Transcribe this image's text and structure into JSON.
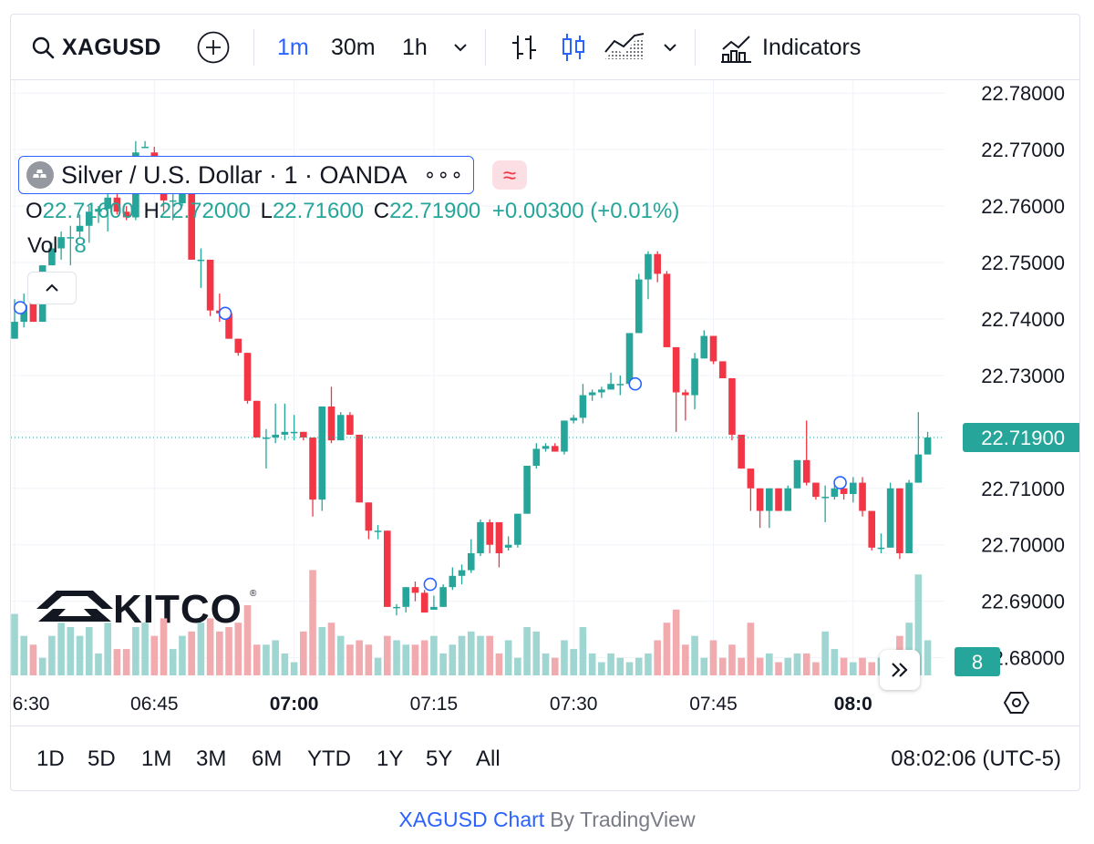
{
  "toolbar": {
    "symbol": "XAGUSD",
    "timeframes": [
      "1m",
      "30m",
      "1h"
    ],
    "active_timeframe": "1m",
    "indicators_label": "Indicators",
    "icons": [
      "search-icon",
      "add-symbol-icon",
      "chevron-down-icon",
      "bar-chart-icon",
      "candles-icon",
      "area-chart-icon",
      "chevron-down-icon",
      "indicators-icon"
    ]
  },
  "legend": {
    "title": "Silver / U.S. Dollar · 1 · OANDA",
    "more": "∘∘∘",
    "approx": "≈",
    "o_label": "O",
    "o": "22.71600",
    "h_label": "H",
    "h": "22.72000",
    "l_label": "L",
    "l": "22.71600",
    "c_label": "C",
    "c": "22.71900",
    "change": "+0.00300 (+0.01%)",
    "vol_label": "Vol",
    "vol": "8"
  },
  "watermark": "KITCO",
  "price_axis_labels": [
    "22.78000",
    "22.77000",
    "22.76000",
    "22.75000",
    "22.74000",
    "22.73000",
    "22.72000",
    "22.71000",
    "22.70000",
    "22.69000",
    "22.68000"
  ],
  "current_price_label": "22.71900",
  "current_volume_label": "8",
  "time_axis_labels": [
    {
      "text": "6:30",
      "bold": false
    },
    {
      "text": "06:45",
      "bold": false
    },
    {
      "text": "07:00",
      "bold": true
    },
    {
      "text": "07:15",
      "bold": false
    },
    {
      "text": "07:30",
      "bold": false
    },
    {
      "text": "07:45",
      "bold": false
    },
    {
      "text": "08:0",
      "bold": true
    }
  ],
  "ranges": [
    "1D",
    "5D",
    "1M",
    "3M",
    "6M",
    "YTD",
    "1Y",
    "5Y",
    "All"
  ],
  "clock": "08:02:06 (UTC-5)",
  "footer": {
    "link": "XAGUSD Chart",
    "by": "By TradingView"
  },
  "colors": {
    "up": "#26a69a",
    "down": "#f23645",
    "accent": "#2962ff",
    "up_volume": "#9fd6d1",
    "down_volume": "#f1aaae"
  },
  "chart_data": {
    "type": "candlestick",
    "interval": "1m",
    "ylim": [
      22.678,
      22.781
    ],
    "last_price": 22.719,
    "x_start": "06:30",
    "candles": [
      {
        "o": 22.7365,
        "h": 22.7435,
        "l": 22.7365,
        "c": 22.7395,
        "v": 14
      },
      {
        "o": 22.7395,
        "h": 22.7445,
        "l": 22.7385,
        "c": 22.7425,
        "v": 9
      },
      {
        "o": 22.7445,
        "h": 22.7445,
        "l": 22.7395,
        "c": 22.7395,
        "v": 7
      },
      {
        "o": 22.7395,
        "h": 22.7495,
        "l": 22.7395,
        "c": 22.7495,
        "v": 4
      },
      {
        "o": 22.7495,
        "h": 22.7535,
        "l": 22.7495,
        "c": 22.7525,
        "v": 9
      },
      {
        "o": 22.7525,
        "h": 22.7555,
        "l": 22.7505,
        "c": 22.7545,
        "v": 12
      },
      {
        "o": 22.7545,
        "h": 22.7565,
        "l": 22.7495,
        "c": 22.7545,
        "v": 11
      },
      {
        "o": 22.7555,
        "h": 22.7585,
        "l": 22.7545,
        "c": 22.7565,
        "v": 9
      },
      {
        "o": 22.7565,
        "h": 22.76,
        "l": 22.7535,
        "c": 22.759,
        "v": 11
      },
      {
        "o": 22.759,
        "h": 22.76,
        "l": 22.757,
        "c": 22.7595,
        "v": 5
      },
      {
        "o": 22.7595,
        "h": 22.7625,
        "l": 22.7555,
        "c": 22.7615,
        "v": 12
      },
      {
        "o": 22.7615,
        "h": 22.7625,
        "l": 22.7585,
        "c": 22.759,
        "v": 6
      },
      {
        "o": 22.759,
        "h": 22.76,
        "l": 22.7575,
        "c": 22.758,
        "v": 6
      },
      {
        "o": 22.758,
        "h": 22.7715,
        "l": 22.7575,
        "c": 22.7695,
        "v": 11
      },
      {
        "o": 22.7705,
        "h": 22.7715,
        "l": 22.7705,
        "c": 22.7705,
        "v": 12
      },
      {
        "o": 22.7695,
        "h": 22.7705,
        "l": 22.763,
        "c": 22.7645,
        "v": 9
      },
      {
        "o": 22.7645,
        "h": 22.766,
        "l": 22.759,
        "c": 22.761,
        "v": 13
      },
      {
        "o": 22.761,
        "h": 22.7625,
        "l": 22.7575,
        "c": 22.761,
        "v": 6
      },
      {
        "o": 22.7605,
        "h": 22.766,
        "l": 22.76,
        "c": 22.7655,
        "v": 9
      },
      {
        "o": 22.7655,
        "h": 22.7655,
        "l": 22.7505,
        "c": 22.7505,
        "v": 10
      },
      {
        "o": 22.7505,
        "h": 22.7525,
        "l": 22.7455,
        "c": 22.7505,
        "v": 12
      },
      {
        "o": 22.7505,
        "h": 22.7505,
        "l": 22.7405,
        "c": 22.7415,
        "v": 13
      },
      {
        "o": 22.7415,
        "h": 22.7445,
        "l": 22.7395,
        "c": 22.741,
        "v": 10
      },
      {
        "o": 22.741,
        "h": 22.741,
        "l": 22.7365,
        "c": 22.7365,
        "v": 11
      },
      {
        "o": 22.7365,
        "h": 22.7365,
        "l": 22.7335,
        "c": 22.734,
        "v": 12
      },
      {
        "o": 22.734,
        "h": 22.734,
        "l": 22.725,
        "c": 22.7255,
        "v": 16
      },
      {
        "o": 22.7255,
        "h": 22.7255,
        "l": 22.719,
        "c": 22.719,
        "v": 7
      },
      {
        "o": 22.719,
        "h": 22.7205,
        "l": 22.7135,
        "c": 22.719,
        "v": 7
      },
      {
        "o": 22.719,
        "h": 22.725,
        "l": 22.718,
        "c": 22.7195,
        "v": 8
      },
      {
        "o": 22.7195,
        "h": 22.725,
        "l": 22.7185,
        "c": 22.72,
        "v": 5
      },
      {
        "o": 22.72,
        "h": 22.723,
        "l": 22.7185,
        "c": 22.72,
        "v": 3
      },
      {
        "o": 22.72,
        "h": 22.72,
        "l": 22.7185,
        "c": 22.719,
        "v": 10
      },
      {
        "o": 22.719,
        "h": 22.719,
        "l": 22.705,
        "c": 22.708,
        "v": 24
      },
      {
        "o": 22.708,
        "h": 22.7245,
        "l": 22.706,
        "c": 22.7245,
        "v": 11
      },
      {
        "o": 22.7245,
        "h": 22.728,
        "l": 22.718,
        "c": 22.7185,
        "v": 12
      },
      {
        "o": 22.7185,
        "h": 22.7235,
        "l": 22.7185,
        "c": 22.723,
        "v": 9
      },
      {
        "o": 22.723,
        "h": 22.7235,
        "l": 22.7195,
        "c": 22.7195,
        "v": 7
      },
      {
        "o": 22.7195,
        "h": 22.7195,
        "l": 22.7075,
        "c": 22.7075,
        "v": 8
      },
      {
        "o": 22.7075,
        "h": 22.7075,
        "l": 22.701,
        "c": 22.7025,
        "v": 7
      },
      {
        "o": 22.7025,
        "h": 22.7035,
        "l": 22.701,
        "c": 22.7025,
        "v": 4
      },
      {
        "o": 22.7025,
        "h": 22.7025,
        "l": 22.689,
        "c": 22.689,
        "v": 9
      },
      {
        "o": 22.689,
        "h": 22.6895,
        "l": 22.6875,
        "c": 22.689,
        "v": 8
      },
      {
        "o": 22.689,
        "h": 22.6925,
        "l": 22.688,
        "c": 22.6925,
        "v": 7
      },
      {
        "o": 22.6925,
        "h": 22.6935,
        "l": 22.69,
        "c": 22.6915,
        "v": 7
      },
      {
        "o": 22.6915,
        "h": 22.692,
        "l": 22.688,
        "c": 22.688,
        "v": 8
      },
      {
        "o": 22.6885,
        "h": 22.691,
        "l": 22.6885,
        "c": 22.689,
        "v": 9
      },
      {
        "o": 22.689,
        "h": 22.693,
        "l": 22.689,
        "c": 22.6925,
        "v": 5
      },
      {
        "o": 22.6925,
        "h": 22.696,
        "l": 22.692,
        "c": 22.6945,
        "v": 7
      },
      {
        "o": 22.6945,
        "h": 22.6965,
        "l": 22.693,
        "c": 22.6955,
        "v": 9
      },
      {
        "o": 22.6955,
        "h": 22.701,
        "l": 22.695,
        "c": 22.6985,
        "v": 10
      },
      {
        "o": 22.6985,
        "h": 22.7045,
        "l": 22.698,
        "c": 22.704,
        "v": 9
      },
      {
        "o": 22.704,
        "h": 22.7045,
        "l": 22.6985,
        "c": 22.7,
        "v": 9
      },
      {
        "o": 22.704,
        "h": 22.704,
        "l": 22.696,
        "c": 22.6985,
        "v": 5
      },
      {
        "o": 22.6995,
        "h": 22.7015,
        "l": 22.699,
        "c": 22.7,
        "v": 8
      },
      {
        "o": 22.7,
        "h": 22.7055,
        "l": 22.6995,
        "c": 22.7055,
        "v": 4
      },
      {
        "o": 22.7055,
        "h": 22.714,
        "l": 22.7055,
        "c": 22.714,
        "v": 11
      },
      {
        "o": 22.714,
        "h": 22.718,
        "l": 22.7135,
        "c": 22.717,
        "v": 10
      },
      {
        "o": 22.717,
        "h": 22.718,
        "l": 22.7165,
        "c": 22.7175,
        "v": 5
      },
      {
        "o": 22.7175,
        "h": 22.718,
        "l": 22.7165,
        "c": 22.7165,
        "v": 4
      },
      {
        "o": 22.7165,
        "h": 22.722,
        "l": 22.716,
        "c": 22.722,
        "v": 8
      },
      {
        "o": 22.722,
        "h": 22.723,
        "l": 22.7215,
        "c": 22.7225,
        "v": 6
      },
      {
        "o": 22.7225,
        "h": 22.7285,
        "l": 22.7215,
        "c": 22.7265,
        "v": 11
      },
      {
        "o": 22.7265,
        "h": 22.7275,
        "l": 22.7255,
        "c": 22.727,
        "v": 5
      },
      {
        "o": 22.727,
        "h": 22.728,
        "l": 22.726,
        "c": 22.7275,
        "v": 3
      },
      {
        "o": 22.7275,
        "h": 22.7305,
        "l": 22.7275,
        "c": 22.7285,
        "v": 5
      },
      {
        "o": 22.7285,
        "h": 22.73,
        "l": 22.7265,
        "c": 22.7285,
        "v": 4
      },
      {
        "o": 22.7285,
        "h": 22.7375,
        "l": 22.7285,
        "c": 22.7375,
        "v": 3
      },
      {
        "o": 22.7375,
        "h": 22.748,
        "l": 22.7375,
        "c": 22.747,
        "v": 4
      },
      {
        "o": 22.747,
        "h": 22.752,
        "l": 22.7435,
        "c": 22.7515,
        "v": 5
      },
      {
        "o": 22.7515,
        "h": 22.752,
        "l": 22.7465,
        "c": 22.748,
        "v": 8
      },
      {
        "o": 22.748,
        "h": 22.7485,
        "l": 22.735,
        "c": 22.735,
        "v": 12
      },
      {
        "o": 22.735,
        "h": 22.735,
        "l": 22.72,
        "c": 22.727,
        "v": 15
      },
      {
        "o": 22.727,
        "h": 22.7275,
        "l": 22.722,
        "c": 22.7265,
        "v": 7
      },
      {
        "o": 22.7265,
        "h": 22.734,
        "l": 22.724,
        "c": 22.733,
        "v": 9
      },
      {
        "o": 22.733,
        "h": 22.738,
        "l": 22.733,
        "c": 22.737,
        "v": 4
      },
      {
        "o": 22.737,
        "h": 22.737,
        "l": 22.732,
        "c": 22.7325,
        "v": 8
      },
      {
        "o": 22.7325,
        "h": 22.7325,
        "l": 22.7295,
        "c": 22.7295,
        "v": 4
      },
      {
        "o": 22.7295,
        "h": 22.7295,
        "l": 22.7185,
        "c": 22.7195,
        "v": 7
      },
      {
        "o": 22.7195,
        "h": 22.7195,
        "l": 22.7135,
        "c": 22.7135,
        "v": 4
      },
      {
        "o": 22.7135,
        "h": 22.7135,
        "l": 22.706,
        "c": 22.71,
        "v": 12
      },
      {
        "o": 22.71,
        "h": 22.71,
        "l": 22.703,
        "c": 22.706,
        "v": 4
      },
      {
        "o": 22.706,
        "h": 22.71,
        "l": 22.703,
        "c": 22.71,
        "v": 5
      },
      {
        "o": 22.71,
        "h": 22.71,
        "l": 22.706,
        "c": 22.706,
        "v": 3
      },
      {
        "o": 22.706,
        "h": 22.7105,
        "l": 22.706,
        "c": 22.71,
        "v": 4
      },
      {
        "o": 22.71,
        "h": 22.715,
        "l": 22.71,
        "c": 22.715,
        "v": 5
      },
      {
        "o": 22.715,
        "h": 22.722,
        "l": 22.7105,
        "c": 22.711,
        "v": 5
      },
      {
        "o": 22.711,
        "h": 22.711,
        "l": 22.708,
        "c": 22.7085,
        "v": 3
      },
      {
        "o": 22.7085,
        "h": 22.7105,
        "l": 22.704,
        "c": 22.7085,
        "v": 10
      },
      {
        "o": 22.7085,
        "h": 22.7115,
        "l": 22.708,
        "c": 22.71,
        "v": 6
      },
      {
        "o": 22.71,
        "h": 22.7105,
        "l": 22.708,
        "c": 22.709,
        "v": 4
      },
      {
        "o": 22.709,
        "h": 22.712,
        "l": 22.7075,
        "c": 22.711,
        "v": 3
      },
      {
        "o": 22.711,
        "h": 22.712,
        "l": 22.705,
        "c": 22.706,
        "v": 4
      },
      {
        "o": 22.706,
        "h": 22.706,
        "l": 22.699,
        "c": 22.6995,
        "v": 3
      },
      {
        "o": 22.6995,
        "h": 22.702,
        "l": 22.6985,
        "c": 22.6995,
        "v": 4
      },
      {
        "o": 22.6995,
        "h": 22.711,
        "l": 22.6995,
        "c": 22.71,
        "v": 4
      },
      {
        "o": 22.71,
        "h": 22.71,
        "l": 22.6975,
        "c": 22.6985,
        "v": 9
      },
      {
        "o": 22.6985,
        "h": 22.7115,
        "l": 22.6985,
        "c": 22.711,
        "v": 12
      },
      {
        "o": 22.711,
        "h": 22.7235,
        "l": 22.711,
        "c": 22.716,
        "v": 23
      },
      {
        "o": 22.716,
        "h": 22.72,
        "l": 22.716,
        "c": 22.719,
        "v": 8
      }
    ]
  }
}
